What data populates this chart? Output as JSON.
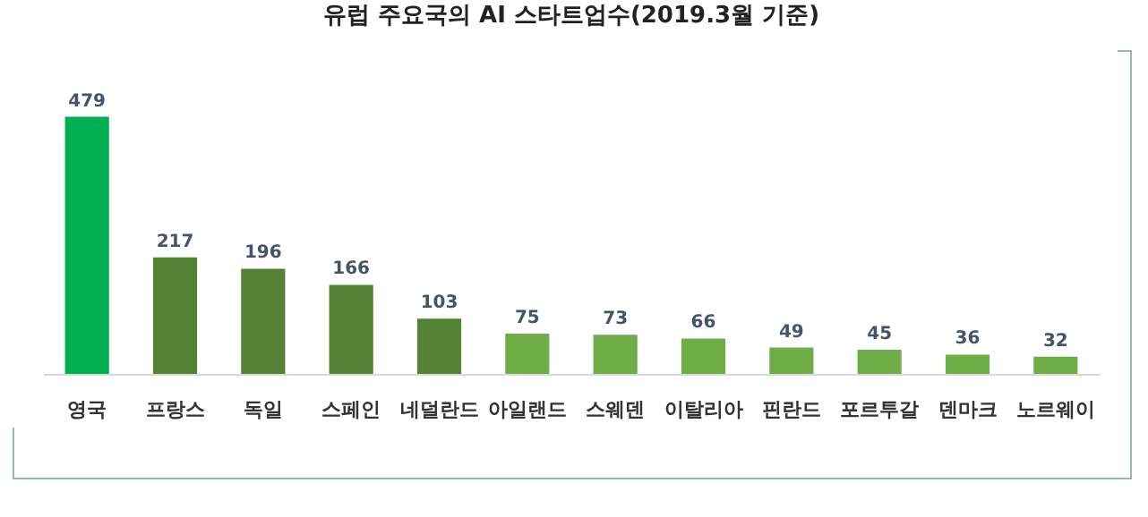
{
  "chart_data": {
    "type": "bar",
    "title": "유럽 주요국의 AI 스타트업수(2019.3월 기준)",
    "categories": [
      "영국",
      "프랑스",
      "독일",
      "스페인",
      "네덜란드",
      "아일랜드",
      "스웨덴",
      "이탈리아",
      "핀란드",
      "포르투갈",
      "덴마크",
      "노르웨이"
    ],
    "values": [
      479,
      217,
      196,
      166,
      103,
      75,
      73,
      66,
      49,
      45,
      36,
      32
    ],
    "colors": [
      "#00b050",
      "#548235",
      "#548235",
      "#548235",
      "#548235",
      "#70ad47",
      "#70ad47",
      "#70ad47",
      "#70ad47",
      "#70ad47",
      "#70ad47",
      "#70ad47"
    ],
    "data_labels": true,
    "tick_labels": "x"
  }
}
